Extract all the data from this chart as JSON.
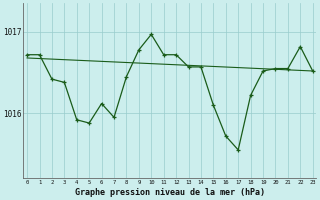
{
  "title": "Graphe pression niveau de la mer (hPa)",
  "bg_color": "#cceeed",
  "grid_color": "#99cccc",
  "line_color": "#1a5c1a",
  "ylim": [
    1015.2,
    1017.35
  ],
  "xlim": [
    -0.3,
    23.3
  ],
  "yticks": [
    1016,
    1017
  ],
  "ytick_labels": [
    "1016",
    "1017"
  ],
  "xticks": [
    0,
    1,
    2,
    3,
    4,
    5,
    6,
    7,
    8,
    9,
    10,
    11,
    12,
    13,
    14,
    15,
    16,
    17,
    18,
    19,
    20,
    21,
    22,
    23
  ],
  "hours": [
    0,
    1,
    2,
    3,
    4,
    5,
    6,
    7,
    8,
    9,
    10,
    11,
    12,
    13,
    14,
    15,
    16,
    17,
    18,
    19,
    20,
    21,
    22,
    23
  ],
  "pressure": [
    1016.72,
    1016.72,
    1016.42,
    1016.38,
    1015.92,
    1015.88,
    1016.12,
    1015.95,
    1016.45,
    1016.78,
    1016.97,
    1016.72,
    1016.72,
    1016.57,
    1016.57,
    1016.1,
    1015.72,
    1015.55,
    1016.22,
    1016.52,
    1016.55,
    1016.55,
    1016.82,
    1016.52
  ],
  "trend_x": [
    0,
    23
  ],
  "trend_y": [
    1016.68,
    1016.52
  ]
}
